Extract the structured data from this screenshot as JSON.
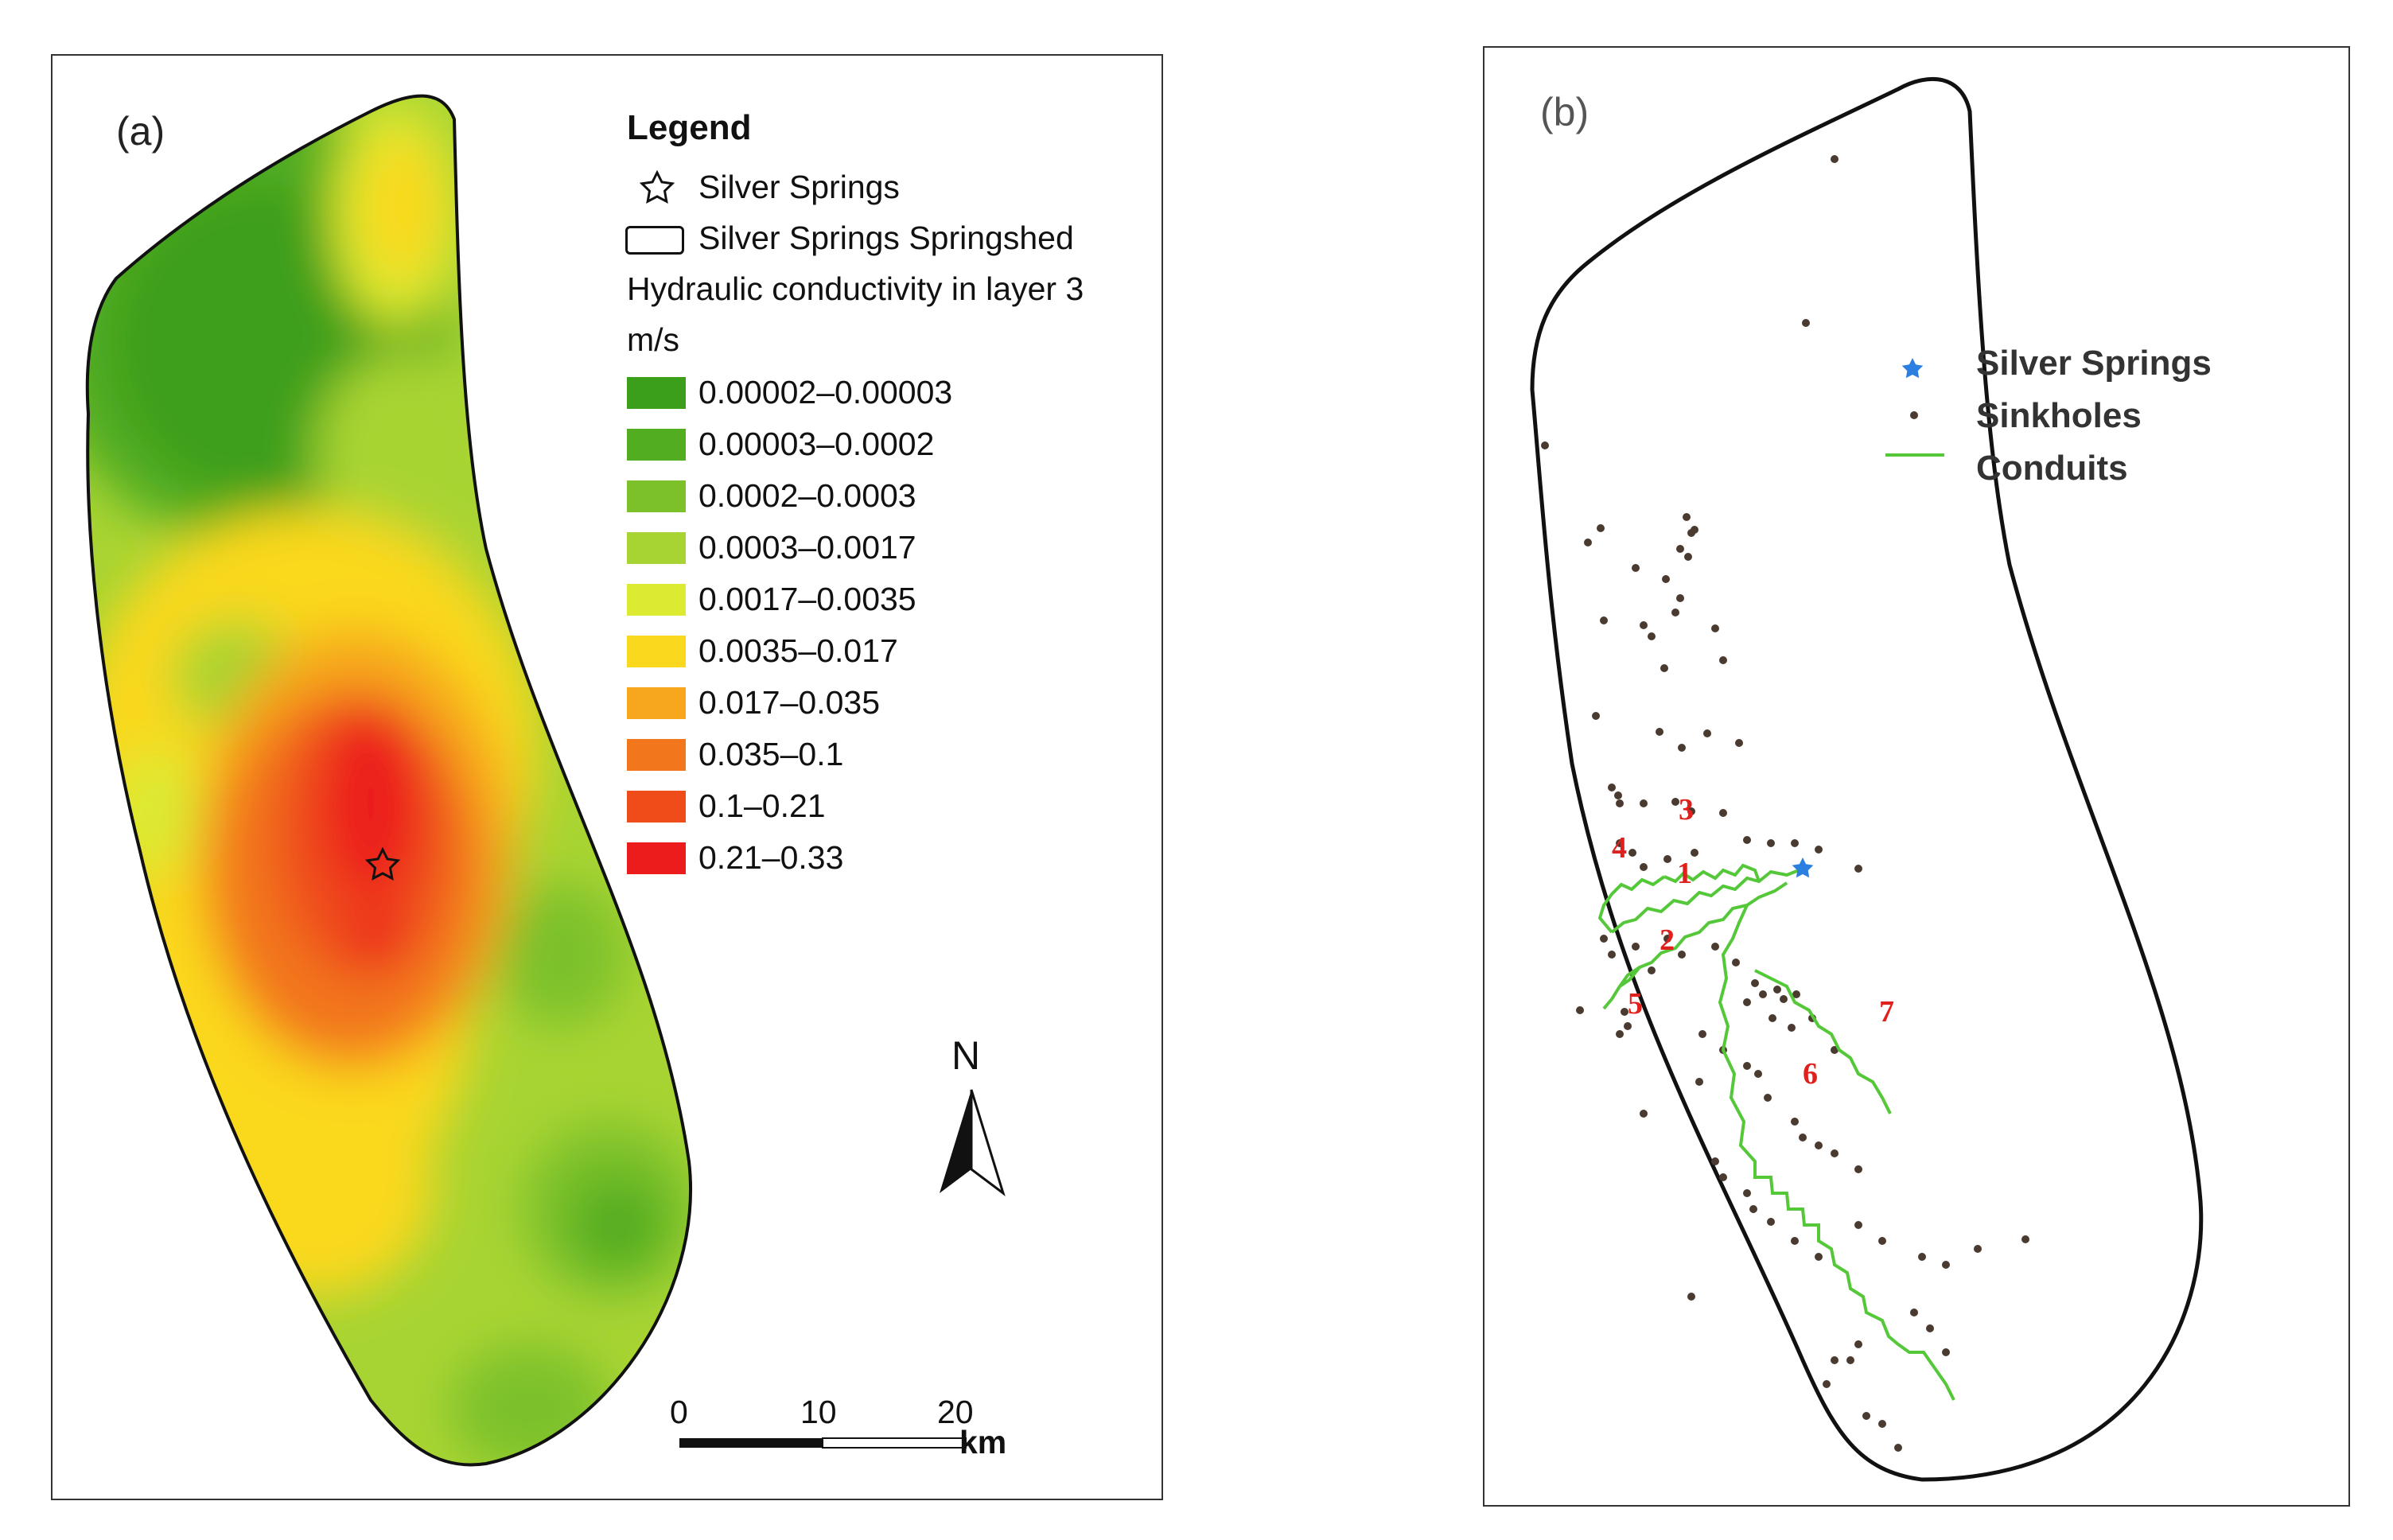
{
  "panel_a": {
    "label": "(a)",
    "legend": {
      "title": "Legend",
      "spring_label": "Silver Springs",
      "springshed_label": "Silver Springs Springshed",
      "variable_label": "Hydraulic conductivity in layer 3",
      "unit_label": "m/s",
      "classes": [
        {
          "range": "0.00002–0.00003",
          "color": "#3c9f1c"
        },
        {
          "range": "0.00003–0.0002",
          "color": "#52ad20"
        },
        {
          "range": "0.0002–0.0003",
          "color": "#7cc12a"
        },
        {
          "range": "0.0003–0.0017",
          "color": "#a8d433"
        },
        {
          "range": "0.0017–0.0035",
          "color": "#dcea32"
        },
        {
          "range": "0.0035–0.017",
          "color": "#fad81e"
        },
        {
          "range": "0.017–0.035",
          "color": "#f6a71d"
        },
        {
          "range": "0.035–0.1",
          "color": "#f2761c"
        },
        {
          "range": "0.1–0.21",
          "color": "#ef4c1a"
        },
        {
          "range": "0.21–0.33",
          "color": "#ec1c1c"
        }
      ]
    },
    "north_label": "N",
    "scale": {
      "ticks": [
        "0",
        "10",
        "20"
      ],
      "unit": "km"
    }
  },
  "panel_b": {
    "label": "(b)",
    "legend": [
      {
        "label": "Silver Springs",
        "color": "#2a7fe0"
      },
      {
        "label": "Sinkholes",
        "color": "#4a3a30"
      },
      {
        "label": "Conduits",
        "color": "#55c83a"
      }
    ],
    "conduit_labels": [
      "1",
      "2",
      "3",
      "4",
      "5",
      "6",
      "7"
    ],
    "conduit_label_color": "#e0201c"
  }
}
